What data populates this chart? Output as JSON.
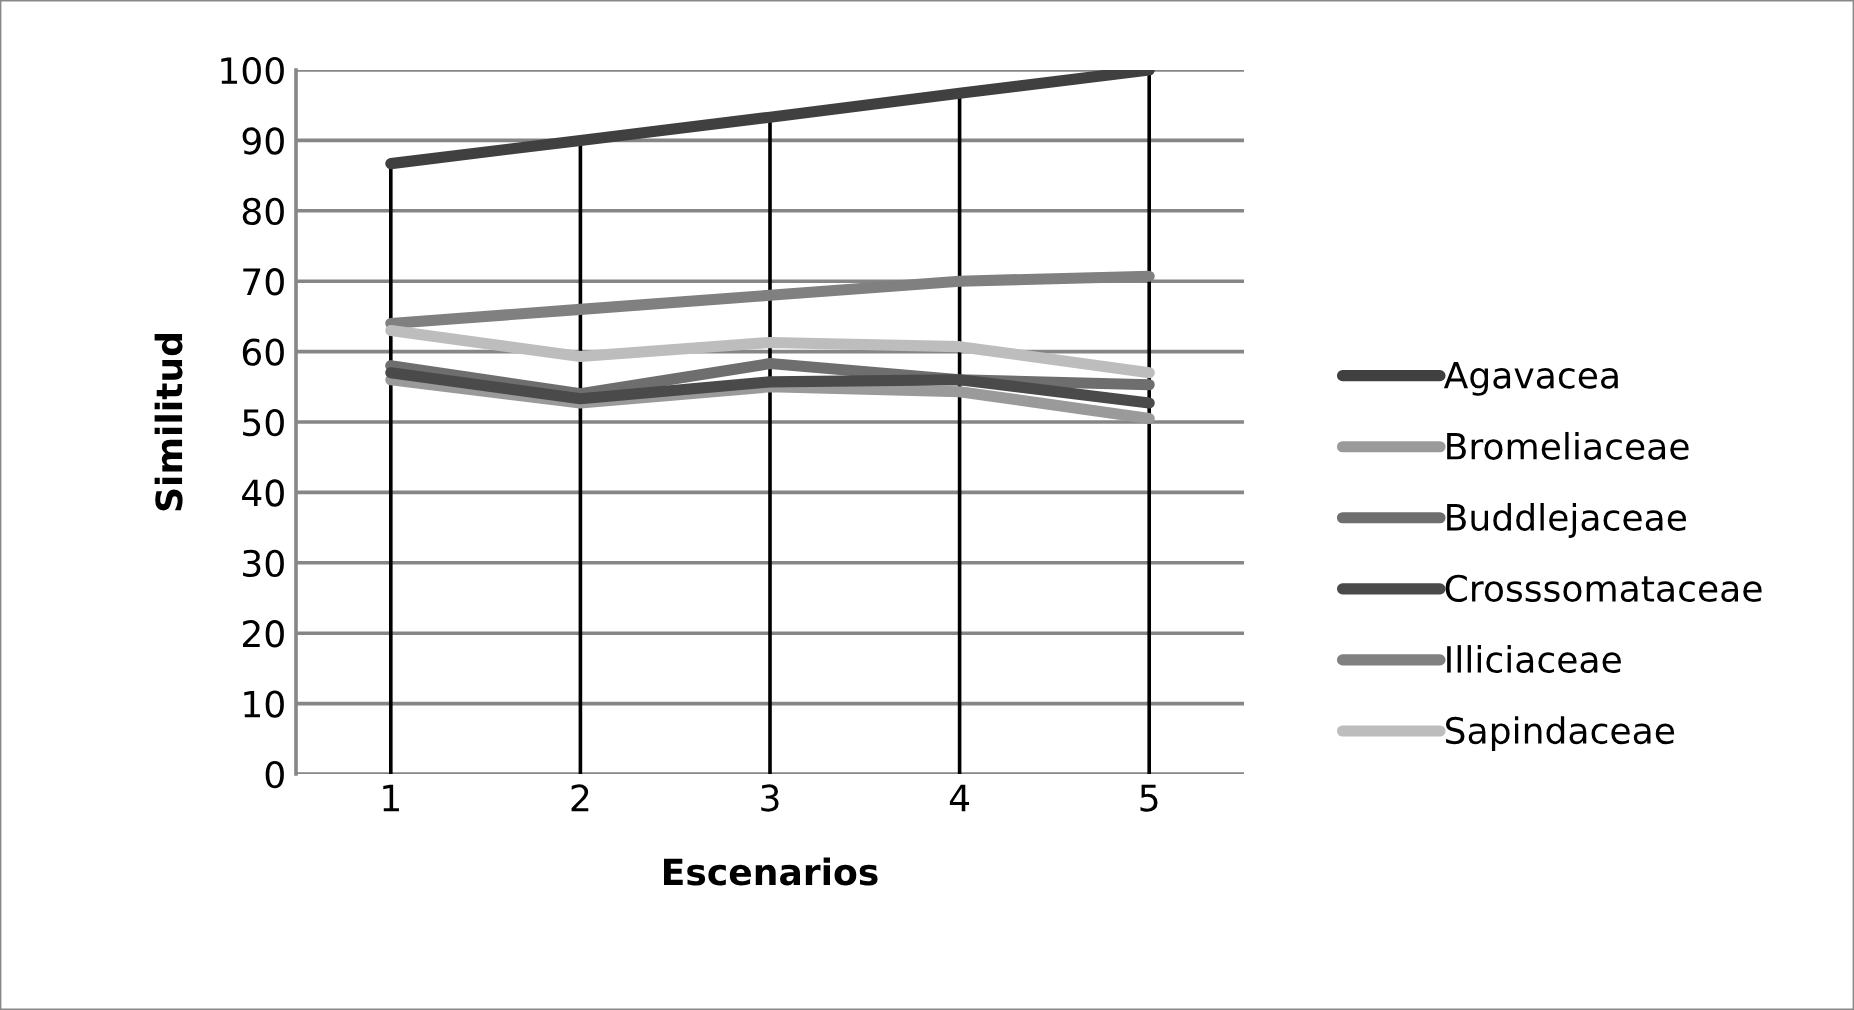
{
  "chart_data": {
    "type": "line",
    "xlabel": "Escenarios",
    "ylabel": "Similitud",
    "x": [
      1,
      2,
      3,
      4,
      5
    ],
    "xlim": [
      0.5,
      5.5
    ],
    "xticks": [
      1,
      2,
      3,
      4,
      5
    ],
    "ylim": [
      0,
      100
    ],
    "yticks": [
      0,
      10,
      20,
      30,
      40,
      50,
      60,
      70,
      80,
      90,
      100
    ],
    "grid": "y",
    "legend": "right",
    "marker": "none",
    "line_style": "solid",
    "series": [
      {
        "name": "Agavacea",
        "color": "#404040",
        "values": [
          86.7,
          90,
          93.3,
          96.7,
          100
        ]
      },
      {
        "name": "Bromeliaceae",
        "color": "#9a9a9a",
        "values": [
          56,
          52.7,
          55,
          54.3,
          50.5
        ]
      },
      {
        "name": "Buddlejaceae",
        "color": "#6e6e6e",
        "values": [
          58,
          54,
          58.3,
          56,
          55.3
        ]
      },
      {
        "name": "Crosssomataceae",
        "color": "#4a4a4a",
        "values": [
          57,
          53.3,
          55.7,
          56,
          52.7
        ]
      },
      {
        "name": "Illiciaceae",
        "color": "#808080",
        "values": [
          64,
          66,
          68,
          70,
          70.7
        ]
      },
      {
        "name": "Sapindaceae",
        "color": "#bdbdbd",
        "values": [
          63,
          59.3,
          61.3,
          60.7,
          57
        ]
      }
    ],
    "ref_lines": [
      {
        "axis": "x",
        "value": 1,
        "color": "#000000"
      },
      {
        "axis": "x",
        "value": 2,
        "color": "#000000"
      },
      {
        "axis": "x",
        "value": 3,
        "color": "#000000"
      },
      {
        "axis": "x",
        "value": 4,
        "color": "#000000"
      },
      {
        "axis": "x",
        "value": 5,
        "color": "#000000"
      }
    ]
  }
}
